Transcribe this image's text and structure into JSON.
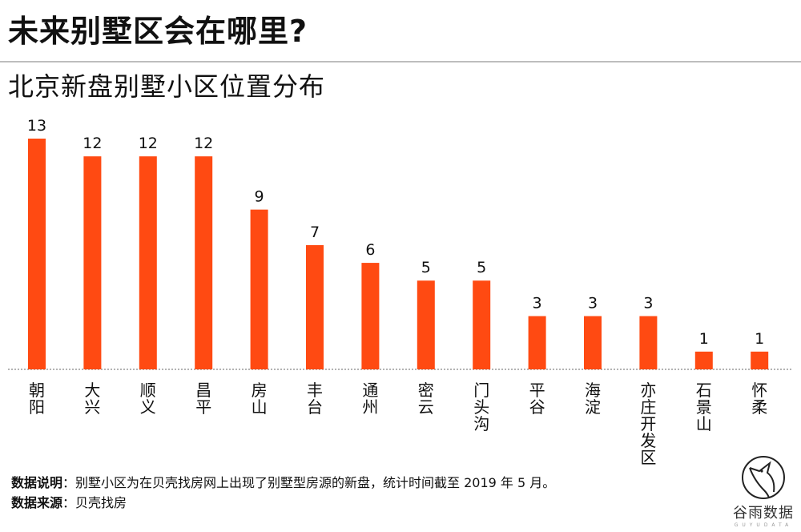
{
  "header": {
    "title": "未来别墅区会在哪里?",
    "subtitle": "北京新盘别墅小区位置分布"
  },
  "chart_data": {
    "type": "bar",
    "title": "北京新盘别墅小区位置分布",
    "xlabel": "",
    "ylabel": "",
    "categories": [
      "朝阳",
      "大兴",
      "顺义",
      "昌平",
      "房山",
      "丰台",
      "通州",
      "密云",
      "门头沟",
      "平谷",
      "海淀",
      "亦庄开发区",
      "石景山",
      "怀柔"
    ],
    "values": [
      13,
      12,
      12,
      12,
      9,
      7,
      6,
      5,
      5,
      3,
      3,
      3,
      1,
      1
    ],
    "ylim": [
      0,
      13
    ],
    "grid": false,
    "legend": "none",
    "data_labels": true,
    "bar_color": "#ff4a12",
    "baseline_style": "dotted"
  },
  "footer": {
    "note_label": "数据说明",
    "note_text": "：别墅小区为在贝壳找房网上出现了别墅型房源的新盘，统计时间截至 2019 年 5 月。",
    "source_label": "数据来源",
    "source_text": "：贝壳找房"
  },
  "logo": {
    "name": "谷雨数据",
    "sub": "GUYUDATA",
    "icon": "bird-in-circle-icon"
  }
}
